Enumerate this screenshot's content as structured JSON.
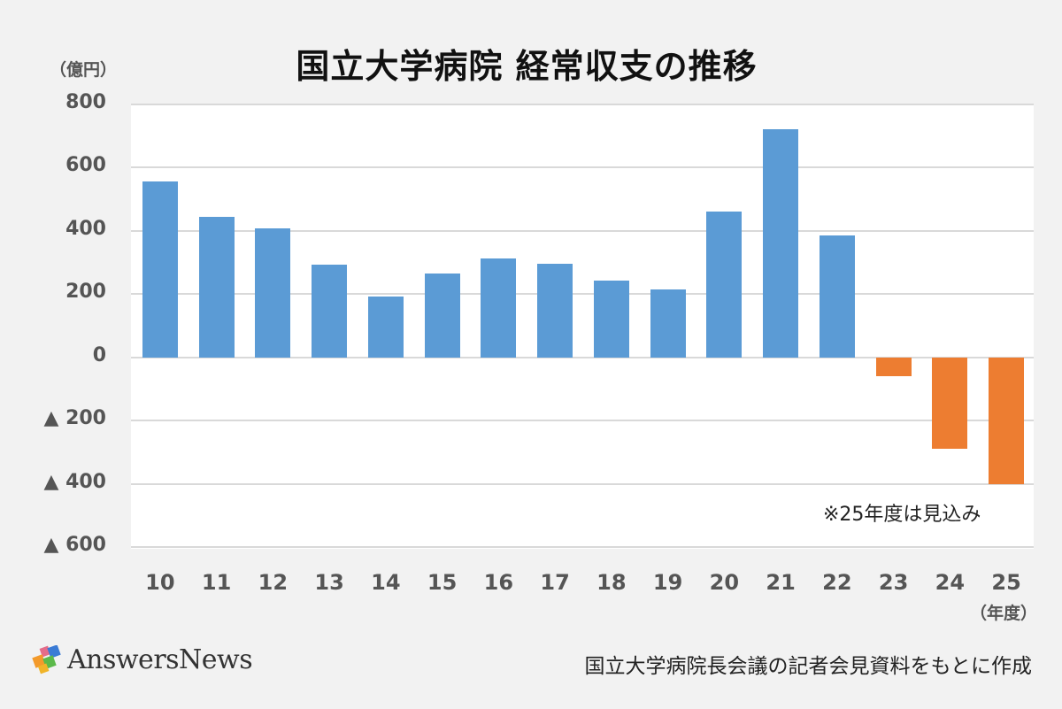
{
  "chart_data": {
    "type": "bar",
    "title": "国立大学病院 経常収支の推移",
    "ylabel": "（億円）",
    "xlabel": "（年度）",
    "categories": [
      "10",
      "11",
      "12",
      "13",
      "14",
      "15",
      "16",
      "17",
      "18",
      "19",
      "20",
      "21",
      "22",
      "23",
      "24",
      "25"
    ],
    "values": [
      557,
      445,
      408,
      294,
      193,
      266,
      313,
      296,
      243,
      215,
      461,
      722,
      386,
      -59,
      -288,
      -400
    ],
    "ylim": [
      -600,
      800
    ],
    "yticks": [
      800,
      600,
      400,
      200,
      0,
      -200,
      -400,
      -600
    ],
    "ytick_labels": [
      "800",
      "600",
      "400",
      "200",
      "0",
      "▲ 200",
      "▲ 400",
      "▲ 600"
    ],
    "grid": true,
    "legend": null,
    "colors": {
      "positive": "#5b9bd5",
      "negative": "#ed7d31"
    },
    "annotations": [
      "※25年度は見込み"
    ]
  },
  "header": {
    "title": "国立大学病院 経常収支の推移",
    "y_unit": "（億円）"
  },
  "axis": {
    "x_unit": "（年度）"
  },
  "note": "※25年度は見込み",
  "footer": {
    "logo_text": "AnswersNews",
    "source": "国立大学病院長会議の記者会見資料をもとに作成"
  }
}
